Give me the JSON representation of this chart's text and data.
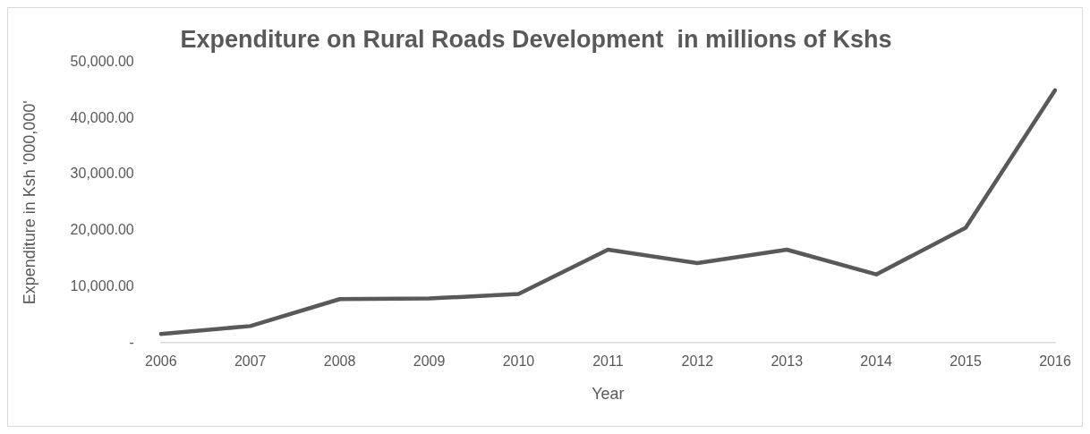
{
  "chart_data": {
    "type": "line",
    "title": "Expenditure on Rural Roads Development  in millions of Kshs",
    "xlabel": "Year",
    "ylabel": "Expenditure in Ksh '000,000'",
    "categories": [
      "2006",
      "2007",
      "2008",
      "2009",
      "2010",
      "2011",
      "2012",
      "2013",
      "2014",
      "2015",
      "2016"
    ],
    "series": [
      {
        "color": "#595959",
        "values": [
          1600,
          3000,
          7800,
          7900,
          8700,
          16600,
          14200,
          16600,
          12200,
          20500,
          45000
        ]
      }
    ],
    "ylim": [
      0,
      50000
    ],
    "yticks": [
      {
        "value": 0,
        "label": "-"
      },
      {
        "value": 10000,
        "label": "10,000.00"
      },
      {
        "value": 20000,
        "label": "20,000.00"
      },
      {
        "value": 30000,
        "label": "30,000.00"
      },
      {
        "value": 40000,
        "label": "40,000.00"
      },
      {
        "value": 50000,
        "label": "50,000.00"
      }
    ],
    "grid": false,
    "legend": false,
    "marker": "none",
    "line_style": "solid"
  }
}
